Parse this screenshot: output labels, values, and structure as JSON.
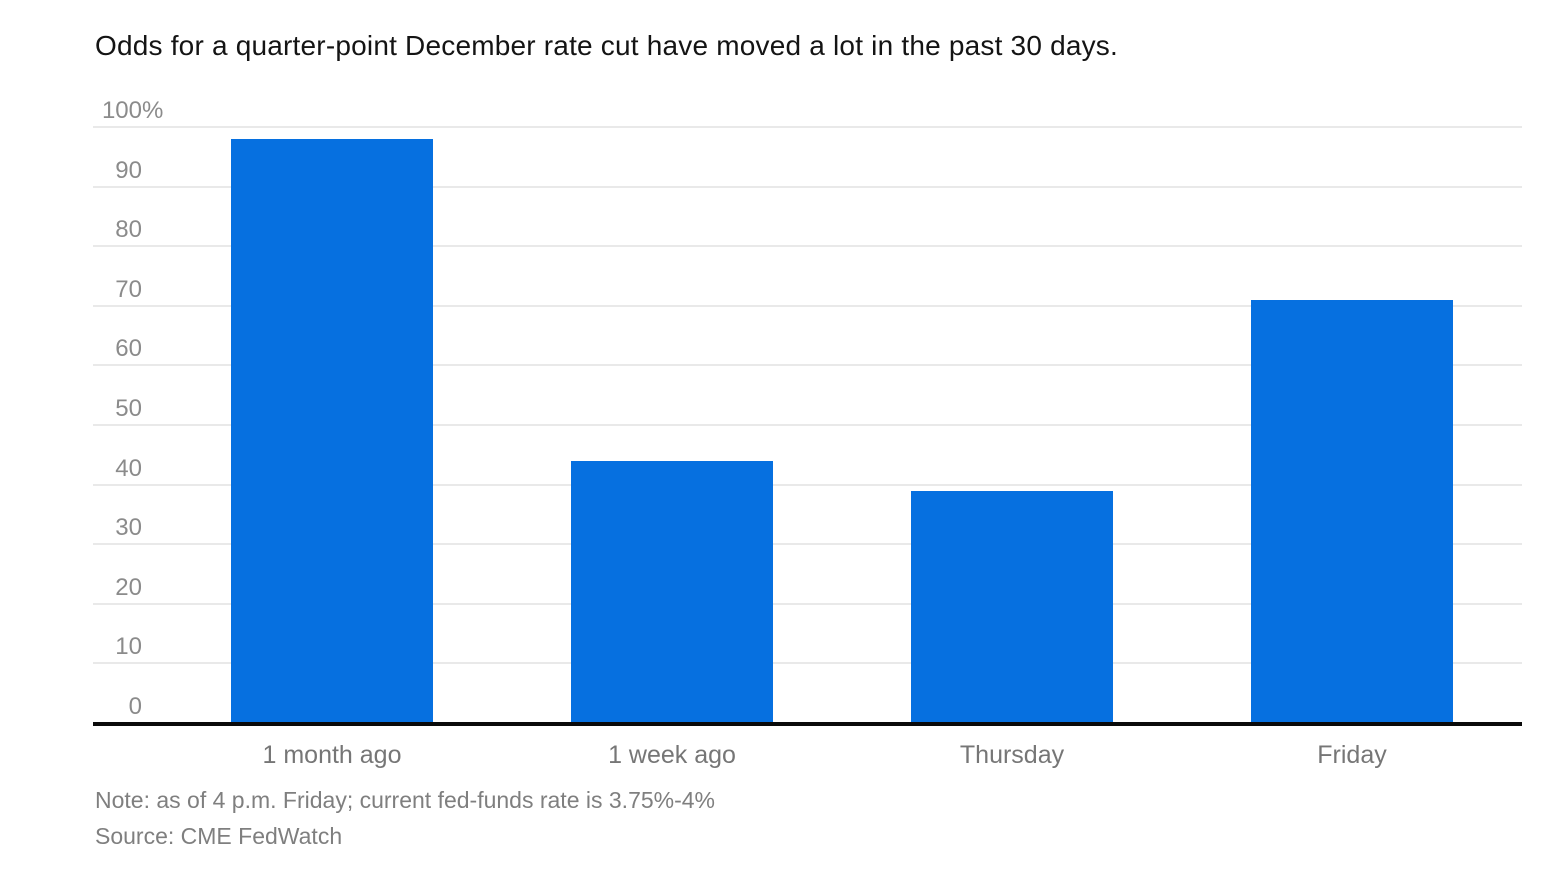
{
  "note": "Note: as of 4 p.m. Friday; current fed-funds rate is 3.75%-4%",
  "source": "Source: CME FedWatch",
  "colors": {
    "bar": "#0670e0",
    "gridline": "#e9e9e9",
    "axis_line": "#0a0a0a",
    "title_text": "#141414",
    "tick_label": "#8b8b8b",
    "category_label": "#767676",
    "note_text": "#7f7f7f",
    "background": "#ffffff"
  },
  "chart_data": {
    "type": "bar",
    "title": "Odds for a quarter-point December rate cut have moved a lot in the past 30 days.",
    "categories": [
      "1 month ago",
      "1 week ago",
      "Thursday",
      "Friday"
    ],
    "values": [
      98,
      44,
      39,
      71
    ],
    "xlabel": "",
    "ylabel": "",
    "ylim": [
      0,
      100
    ],
    "y_ticks": [
      0,
      10,
      20,
      30,
      40,
      50,
      60,
      70,
      80,
      90,
      100
    ],
    "y_unit_suffix_on_top_tick": "%",
    "grid": true,
    "legend": false,
    "legend_position": "none",
    "bar_color": "#0670e0"
  }
}
